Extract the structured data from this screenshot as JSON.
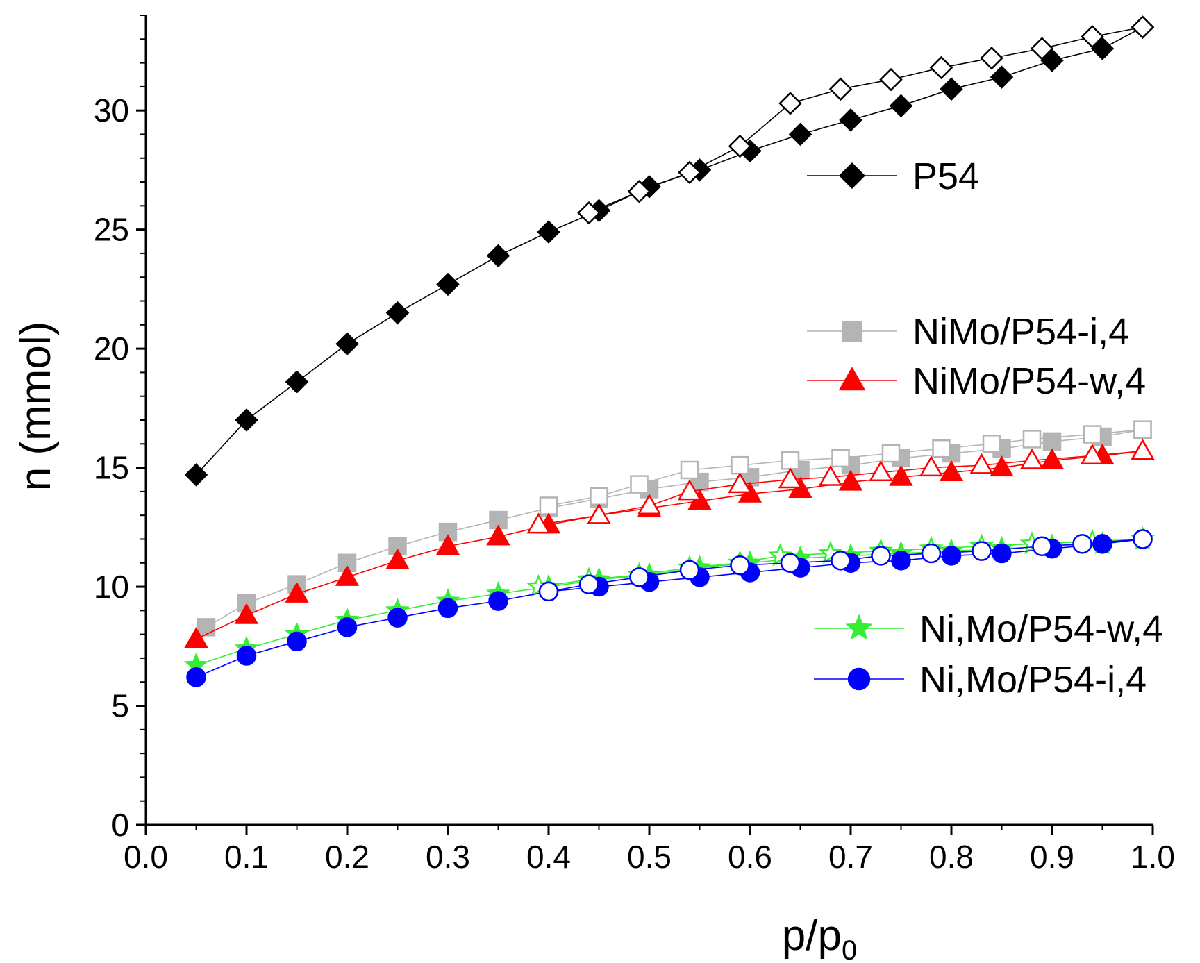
{
  "chart_data": {
    "type": "scatter",
    "xlabel": "p/p",
    "xlabel_subscript": "0",
    "ylabel": "n (mmol)",
    "xlim": [
      0.0,
      1.0
    ],
    "ylim": [
      0,
      34
    ],
    "x_ticks": [
      0.0,
      0.1,
      0.2,
      0.3,
      0.4,
      0.5,
      0.6,
      0.7,
      0.8,
      0.9,
      1.0
    ],
    "x_tick_labels": [
      "0.0",
      "0.1",
      "0.2",
      "0.3",
      "0.4",
      "0.5",
      "0.6",
      "0.7",
      "0.8",
      "0.9",
      "1.0"
    ],
    "y_ticks": [
      0,
      5,
      10,
      15,
      20,
      25,
      30
    ],
    "y_tick_labels": [
      "0",
      "5",
      "10",
      "15",
      "20",
      "25",
      "30"
    ],
    "grid": false,
    "legend": [
      {
        "series": "P54",
        "label": "P54"
      },
      {
        "series": "NiMo/P54-i,4",
        "label": "NiMo/P54-i,4"
      },
      {
        "series": "NiMo/P54-w,4",
        "label": "NiMo/P54-w,4"
      },
      {
        "series": "Ni,Mo/P54-w,4",
        "label": "Ni,Mo/P54-w,4"
      },
      {
        "series": "Ni,Mo/P54-i,4",
        "label": "Ni,Mo/P54-i,4"
      }
    ],
    "series": [
      {
        "name": "P54",
        "color": "#000000",
        "marker": "diamond",
        "adsorption": {
          "x": [
            0.05,
            0.1,
            0.15,
            0.2,
            0.25,
            0.3,
            0.35,
            0.4,
            0.45,
            0.5,
            0.55,
            0.6,
            0.65,
            0.7,
            0.75,
            0.8,
            0.85,
            0.9,
            0.95,
            0.99
          ],
          "y": [
            14.7,
            17.0,
            18.6,
            20.2,
            21.5,
            22.7,
            23.9,
            24.9,
            25.8,
            26.8,
            27.5,
            28.3,
            29.0,
            29.6,
            30.2,
            30.9,
            31.4,
            32.1,
            32.6,
            33.5
          ]
        },
        "desorption": {
          "x": [
            0.99,
            0.94,
            0.89,
            0.84,
            0.79,
            0.74,
            0.69,
            0.64,
            0.59,
            0.54,
            0.49,
            0.44
          ],
          "y": [
            33.5,
            33.1,
            32.6,
            32.2,
            31.8,
            31.3,
            30.9,
            30.3,
            28.5,
            27.4,
            26.6,
            25.7
          ]
        }
      },
      {
        "name": "NiMo/P54-i,4",
        "color": "#b4b4b4",
        "marker": "square",
        "adsorption": {
          "x": [
            0.06,
            0.1,
            0.15,
            0.2,
            0.25,
            0.3,
            0.35,
            0.4,
            0.45,
            0.5,
            0.55,
            0.6,
            0.65,
            0.7,
            0.75,
            0.8,
            0.85,
            0.9,
            0.95,
            0.99
          ],
          "y": [
            8.3,
            9.3,
            10.1,
            11.0,
            11.7,
            12.3,
            12.8,
            13.3,
            13.7,
            14.1,
            14.4,
            14.6,
            14.9,
            15.1,
            15.4,
            15.6,
            15.8,
            16.1,
            16.3,
            16.6
          ]
        },
        "desorption": {
          "x": [
            0.99,
            0.94,
            0.88,
            0.84,
            0.79,
            0.74,
            0.69,
            0.64,
            0.59,
            0.54,
            0.49,
            0.45,
            0.4
          ],
          "y": [
            16.6,
            16.4,
            16.2,
            16.0,
            15.8,
            15.6,
            15.4,
            15.3,
            15.1,
            14.9,
            14.3,
            13.8,
            13.4
          ]
        }
      },
      {
        "name": "NiMo/P54-w,4",
        "color": "#ff0000",
        "marker": "triangle",
        "adsorption": {
          "x": [
            0.05,
            0.1,
            0.15,
            0.2,
            0.25,
            0.3,
            0.35,
            0.4,
            0.45,
            0.5,
            0.55,
            0.6,
            0.65,
            0.7,
            0.75,
            0.8,
            0.85,
            0.9,
            0.95,
            0.99
          ],
          "y": [
            7.8,
            8.8,
            9.7,
            10.4,
            11.1,
            11.7,
            12.1,
            12.6,
            13.0,
            13.3,
            13.6,
            13.9,
            14.1,
            14.4,
            14.6,
            14.8,
            15.0,
            15.3,
            15.5,
            15.7
          ]
        },
        "desorption": {
          "x": [
            0.99,
            0.94,
            0.88,
            0.83,
            0.78,
            0.73,
            0.68,
            0.64,
            0.59,
            0.54,
            0.5,
            0.45,
            0.39
          ],
          "y": [
            15.7,
            15.5,
            15.3,
            15.1,
            15.0,
            14.8,
            14.6,
            14.5,
            14.3,
            14.0,
            13.4,
            13.0,
            12.6
          ]
        }
      },
      {
        "name": "Ni,Mo/P54-w,4",
        "color": "#33ee33",
        "marker": "star",
        "adsorption": {
          "x": [
            0.05,
            0.1,
            0.15,
            0.2,
            0.25,
            0.3,
            0.35,
            0.4,
            0.45,
            0.5,
            0.55,
            0.6,
            0.65,
            0.7,
            0.75,
            0.8,
            0.85,
            0.9,
            0.95,
            0.99
          ],
          "y": [
            6.7,
            7.4,
            8.0,
            8.6,
            9.0,
            9.4,
            9.7,
            10.0,
            10.3,
            10.5,
            10.8,
            11.0,
            11.2,
            11.3,
            11.4,
            11.5,
            11.6,
            11.7,
            11.8,
            12.0
          ]
        },
        "desorption": {
          "x": [
            0.99,
            0.94,
            0.88,
            0.83,
            0.78,
            0.73,
            0.68,
            0.63,
            0.59,
            0.54,
            0.49,
            0.44,
            0.39
          ],
          "y": [
            12.0,
            11.9,
            11.8,
            11.7,
            11.6,
            11.5,
            11.4,
            11.3,
            11.0,
            10.8,
            10.5,
            10.3,
            10.0
          ]
        }
      },
      {
        "name": "Ni,Mo/P54-i,4",
        "color": "#0000ff",
        "marker": "circle",
        "adsorption": {
          "x": [
            0.05,
            0.1,
            0.15,
            0.2,
            0.25,
            0.3,
            0.35,
            0.4,
            0.45,
            0.5,
            0.55,
            0.6,
            0.65,
            0.7,
            0.75,
            0.8,
            0.85,
            0.9,
            0.95,
            0.99
          ],
          "y": [
            6.2,
            7.1,
            7.7,
            8.3,
            8.7,
            9.1,
            9.4,
            9.8,
            10.0,
            10.2,
            10.4,
            10.6,
            10.8,
            11.0,
            11.1,
            11.3,
            11.4,
            11.6,
            11.8,
            12.0
          ]
        },
        "desorption": {
          "x": [
            0.99,
            0.93,
            0.89,
            0.83,
            0.78,
            0.73,
            0.69,
            0.64,
            0.59,
            0.54,
            0.49,
            0.44,
            0.4
          ],
          "y": [
            12.0,
            11.8,
            11.7,
            11.5,
            11.4,
            11.3,
            11.1,
            11.0,
            10.9,
            10.7,
            10.4,
            10.1,
            9.8
          ]
        }
      }
    ]
  }
}
